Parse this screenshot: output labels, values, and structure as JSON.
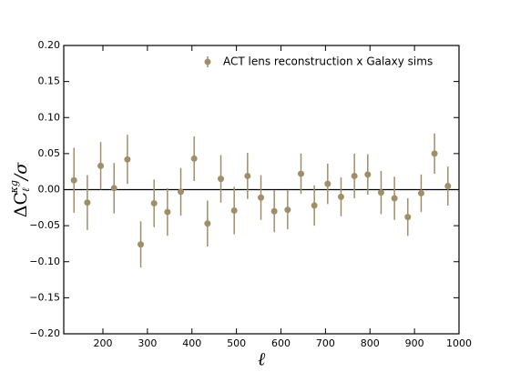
{
  "chart_data": {
    "type": "errorbar",
    "x_label": "ℓ",
    "y_label": [
      "ΔC",
      "ℓ",
      "κg",
      "/σ"
    ],
    "xlim": [
      112,
      1000
    ],
    "ylim": [
      -0.2,
      0.2
    ],
    "xticks": [
      200,
      300,
      400,
      500,
      600,
      700,
      800,
      900,
      1000
    ],
    "yticks": [
      {
        "value": -0.2,
        "label": "−0.20"
      },
      {
        "value": -0.15,
        "label": "−0.15"
      },
      {
        "value": -0.1,
        "label": "−0.10"
      },
      {
        "value": -0.05,
        "label": "−0.05"
      },
      {
        "value": 0,
        "label": "0.00"
      },
      {
        "value": 0.05,
        "label": "0.05"
      },
      {
        "value": 0.1,
        "label": "0.10"
      },
      {
        "value": 0.15,
        "label": "0.15"
      },
      {
        "value": 0.2,
        "label": "0.20"
      }
    ],
    "hline": 0,
    "legend": "upper right",
    "series": [
      {
        "name": "ACT lens reconstruction x Galaxy sims",
        "color": "#a08e6a",
        "x": [
          135,
          165,
          195,
          225,
          255,
          285,
          315,
          345,
          375,
          405,
          435,
          465,
          495,
          525,
          555,
          585,
          615,
          645,
          675,
          705,
          735,
          765,
          795,
          825,
          855,
          885,
          915,
          945,
          975
        ],
        "values": [
          0.013,
          -0.018,
          0.033,
          0.002,
          0.042,
          -0.076,
          -0.019,
          -0.031,
          -0.003,
          0.043,
          -0.047,
          0.015,
          -0.029,
          0.019,
          -0.011,
          -0.03,
          -0.028,
          0.022,
          -0.022,
          0.008,
          -0.01,
          0.019,
          0.021,
          -0.004,
          -0.012,
          -0.038,
          -0.005,
          0.05,
          0.005
        ],
        "errors": [
          0.045,
          0.038,
          0.033,
          0.035,
          0.034,
          0.032,
          0.033,
          0.033,
          0.033,
          0.031,
          0.032,
          0.033,
          0.033,
          0.032,
          0.031,
          0.029,
          0.027,
          0.028,
          0.028,
          0.028,
          0.027,
          0.031,
          0.028,
          0.03,
          0.03,
          0.026,
          0.026,
          0.028,
          0.027
        ]
      }
    ]
  }
}
